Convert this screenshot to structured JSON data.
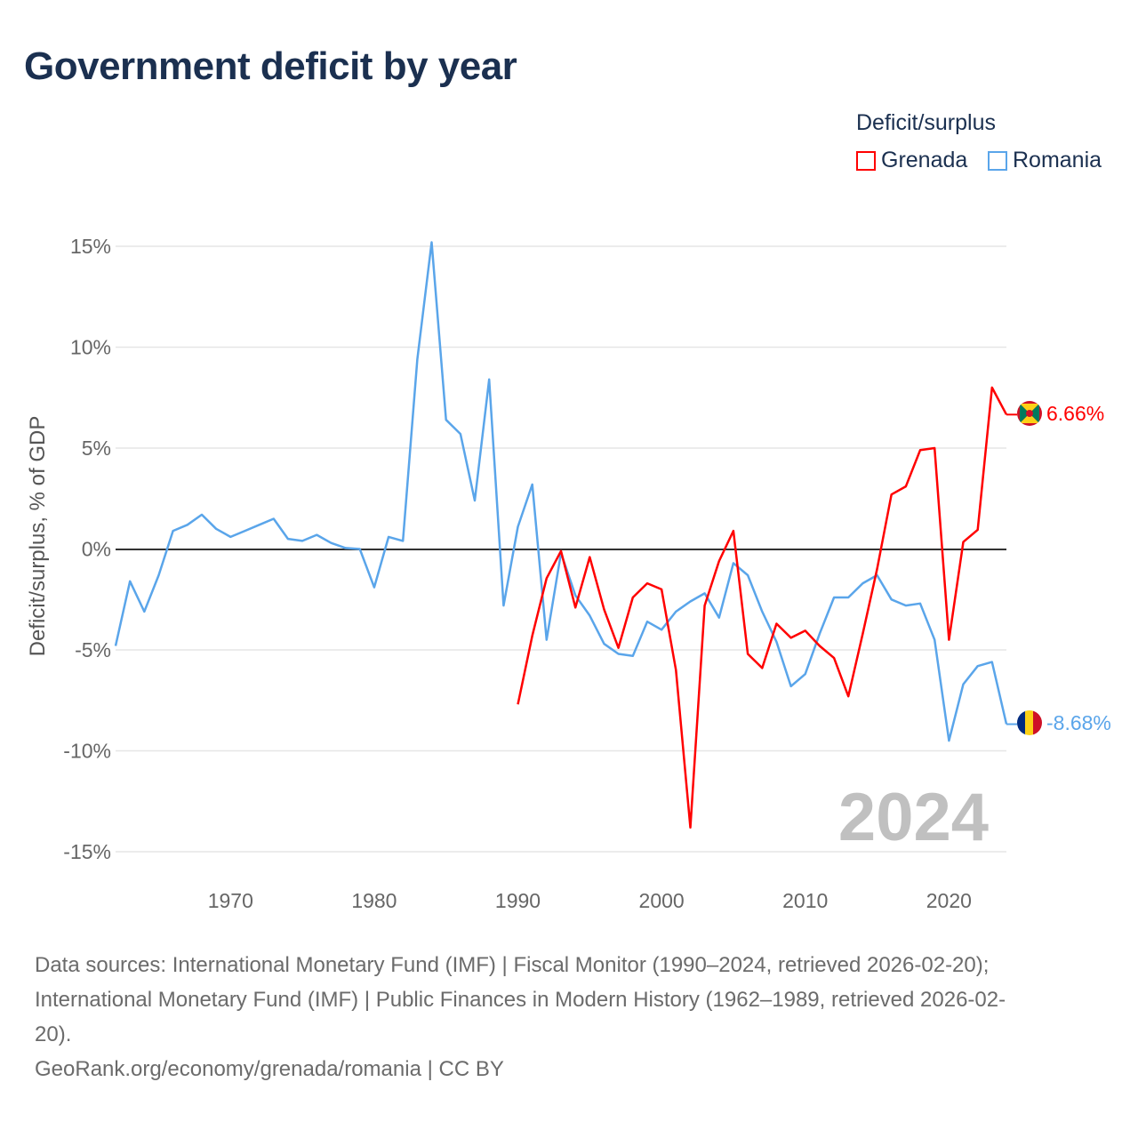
{
  "title": "Government deficit by year",
  "legend": {
    "title": "Deficit/surplus",
    "items": [
      {
        "name": "Grenada",
        "color": "#ff0000"
      },
      {
        "name": "Romania",
        "color": "#5aa5ea"
      }
    ]
  },
  "year_watermark": "2024",
  "end_labels": {
    "grenada": "6.66%",
    "romania": "-8.68%"
  },
  "source_lines": [
    "Data sources: International Monetary Fund (IMF) | Fiscal Monitor (1990–2024, retrieved 2026-02-20);",
    "International Monetary Fund (IMF) | Public Finances in Modern History (1962–1989, retrieved 2026-02-",
    "20).",
    "GeoRank.org/economy/grenada/romania | CC BY"
  ],
  "chart_data": {
    "type": "line",
    "title": "Government deficit by year",
    "xlabel": "",
    "ylabel": "Deficit/surplus, % of GDP",
    "xlim": [
      1962,
      2024
    ],
    "ylim": [
      -15,
      15
    ],
    "xticks": [
      1970,
      1980,
      1990,
      2000,
      2010,
      2020
    ],
    "yticks": [
      15,
      10,
      5,
      0,
      -5,
      -10,
      -15
    ],
    "ytick_labels": [
      "15%",
      "10%",
      "5%",
      "0%",
      "-5%",
      "-10%",
      "-15%"
    ],
    "grid": true,
    "legend_position": "top-right",
    "series": [
      {
        "name": "Grenada",
        "color": "#ff0000",
        "start_year": 1990,
        "values": [
          -7.7,
          -4.3,
          -1.45,
          -0.1,
          -2.9,
          -0.4,
          -3.0,
          -4.9,
          -2.4,
          -1.7,
          -2.0,
          -6.0,
          -13.8,
          -2.8,
          -0.6,
          0.9,
          -5.2,
          -5.9,
          -3.7,
          -4.4,
          -4.05,
          -4.8,
          -5.4,
          -7.3,
          -4.2,
          -1.0,
          2.7,
          3.1,
          4.9,
          5.0,
          -4.5,
          0.35,
          0.95,
          8.0,
          6.66
        ]
      },
      {
        "name": "Romania",
        "color": "#5aa5ea",
        "start_year": 1962,
        "values": [
          -4.8,
          -1.6,
          -3.1,
          -1.3,
          0.9,
          1.2,
          1.7,
          1.0,
          0.6,
          0.9,
          1.2,
          1.5,
          0.5,
          0.4,
          0.7,
          0.3,
          0.05,
          0.0,
          -1.9,
          0.6,
          0.4,
          9.4,
          15.2,
          6.4,
          5.7,
          2.4,
          8.4,
          -2.8,
          1.1,
          3.2,
          -4.5,
          -0.2,
          -2.3,
          -3.3,
          -4.7,
          -5.2,
          -5.3,
          -3.6,
          -4.0,
          -3.1,
          -2.6,
          -2.2,
          -3.4,
          -0.7,
          -1.3,
          -3.1,
          -4.6,
          -6.8,
          -6.2,
          -4.2,
          -2.4,
          -2.4,
          -1.7,
          -1.3,
          -2.5,
          -2.8,
          -2.7,
          -4.5,
          -9.5,
          -6.7,
          -5.8,
          -5.6,
          -8.68
        ]
      }
    ]
  }
}
